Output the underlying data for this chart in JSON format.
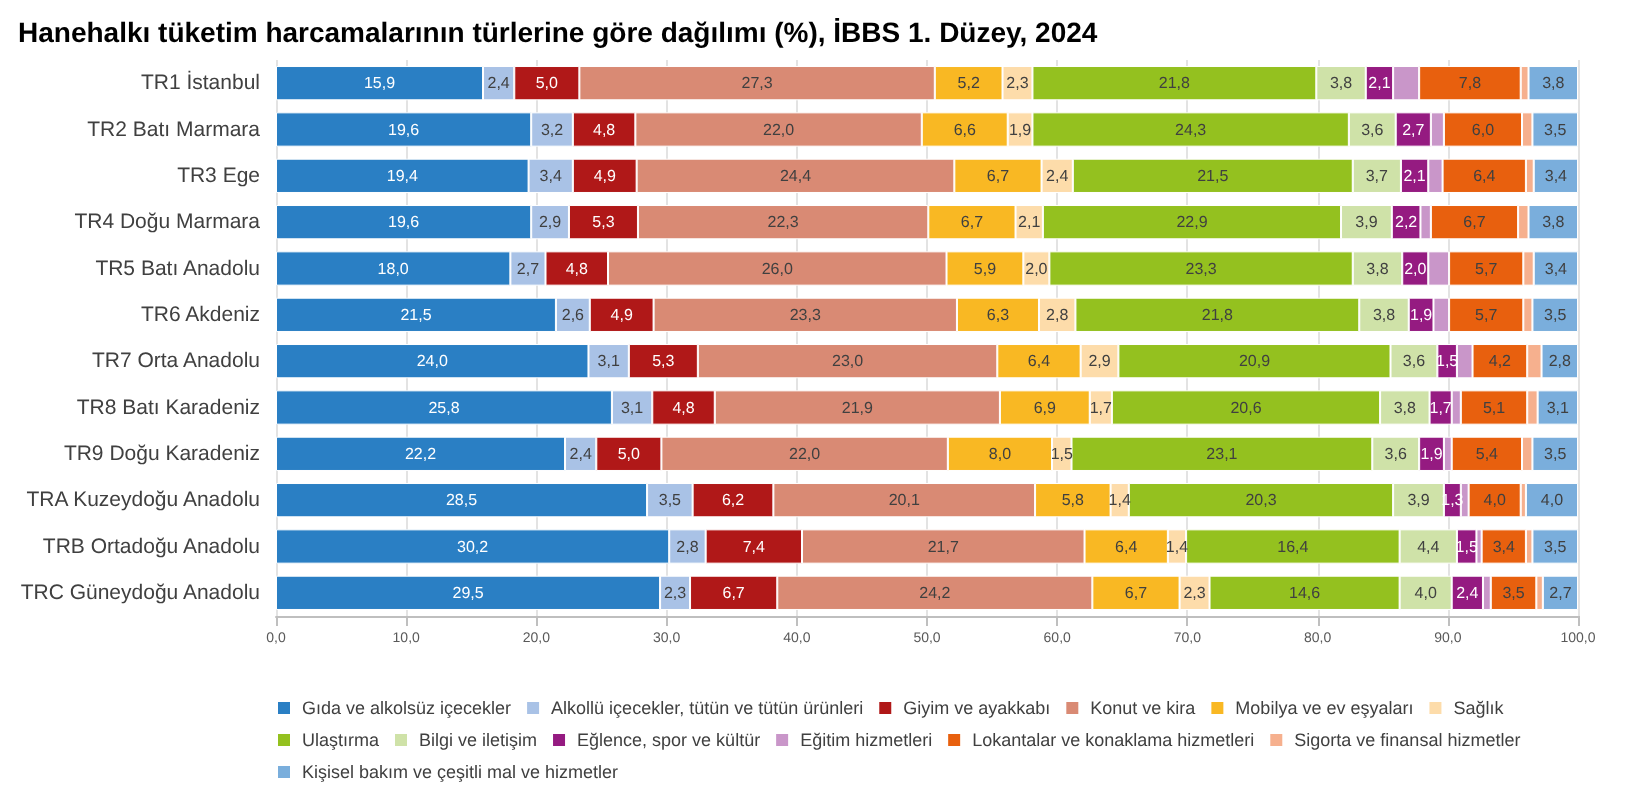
{
  "chart_data": {
    "type": "bar",
    "orientation": "horizontal",
    "stacked": true,
    "title": "Hanehalkı tüketim harcamalarının türlerine göre dağılımı (%), İBBS 1. Düzey, 2024",
    "categories": [
      "TR1 İstanbul",
      "TR2 Batı Marmara",
      "TR3 Ege",
      "TR4 Doğu Marmara",
      "TR5 Batı Anadolu",
      "TR6 Akdeniz",
      "TR7 Orta Anadolu",
      "TR8 Batı Karadeniz",
      "TR9 Doğu Karadeniz",
      "TRA Kuzeydoğu Anadolu",
      "TRB Ortadoğu Anadolu",
      "TRC Güneydoğu Anadolu"
    ],
    "xlim": [
      0,
      100
    ],
    "xticks": [
      {
        "value": 0,
        "label": "0,0"
      },
      {
        "value": 10,
        "label": "10,0"
      },
      {
        "value": 20,
        "label": "20,0"
      },
      {
        "value": 30,
        "label": "30,0"
      },
      {
        "value": 40,
        "label": "40,0"
      },
      {
        "value": 50,
        "label": "50,0"
      },
      {
        "value": 60,
        "label": "60,0"
      },
      {
        "value": 70,
        "label": "70,0"
      },
      {
        "value": 80,
        "label": "80,0"
      },
      {
        "value": 90,
        "label": "90,0"
      },
      {
        "value": 100,
        "label": "100,0"
      }
    ],
    "grid": "x",
    "legend": "bottom",
    "series": [
      {
        "name": "Gıda ve alkolsüz içecekler",
        "color": "#2a7fc4",
        "values": [
          15.9,
          19.6,
          19.4,
          19.6,
          18.0,
          21.5,
          24.0,
          25.8,
          22.2,
          28.5,
          30.2,
          29.5
        ],
        "value_labels": [
          "15,9",
          "19,6",
          "19,4",
          "19,6",
          "18,0",
          "21,5",
          "24,0",
          "25,8",
          "22,2",
          "28,5",
          "30,2",
          "29,5"
        ]
      },
      {
        "name": "Alkollü içecekler, tütün ve tütün ürünleri",
        "color": "#a9c2e6",
        "values": [
          2.4,
          3.2,
          3.4,
          2.9,
          2.7,
          2.6,
          3.1,
          3.1,
          2.4,
          3.5,
          2.8,
          2.3
        ],
        "value_labels": [
          "2,4",
          "3,2",
          "3,4",
          "2,9",
          "2,7",
          "2,6",
          "3,1",
          "3,1",
          "2,4",
          "3,5",
          "2,8",
          "2,3"
        ]
      },
      {
        "name": "Giyim ve ayakkabı",
        "color": "#b01818",
        "values": [
          5.0,
          4.8,
          4.9,
          5.3,
          4.8,
          4.9,
          5.3,
          4.8,
          5.0,
          6.2,
          7.4,
          6.7
        ],
        "value_labels": [
          "5,0",
          "4,8",
          "4,9",
          "5,3",
          "4,8",
          "4,9",
          "5,3",
          "4,8",
          "5,0",
          "6,2",
          "7,4",
          "6,7"
        ]
      },
      {
        "name": "Konut ve kira",
        "color": "#d98a74",
        "values": [
          27.3,
          22.0,
          24.4,
          22.3,
          26.0,
          23.3,
          23.0,
          21.9,
          22.0,
          20.1,
          21.7,
          24.2
        ],
        "value_labels": [
          "27,3",
          "22,0",
          "24,4",
          "22,3",
          "26,0",
          "23,3",
          "23,0",
          "21,9",
          "22,0",
          "20,1",
          "21,7",
          "24,2"
        ]
      },
      {
        "name": "Mobilya ve ev eşyaları",
        "color": "#f9b823",
        "values": [
          5.2,
          6.6,
          6.7,
          6.7,
          5.9,
          6.3,
          6.4,
          6.9,
          8.0,
          5.8,
          6.4,
          6.7
        ],
        "value_labels": [
          "5,2",
          "6,6",
          "6,7",
          "6,7",
          "5,9",
          "6,3",
          "6,4",
          "6,9",
          "8,0",
          "5,8",
          "6,4",
          "6,7"
        ]
      },
      {
        "name": "Sağlık",
        "color": "#fddcaa",
        "values": [
          2.3,
          1.9,
          2.4,
          2.1,
          2.0,
          2.8,
          2.9,
          1.7,
          1.5,
          1.4,
          1.4,
          2.3
        ],
        "value_labels": [
          "2,3",
          "1,9",
          "2,4",
          "2,1",
          "2,0",
          "2,8",
          "2,9",
          "1,7",
          "1,5",
          "1,4",
          "1,4",
          "2,3"
        ]
      },
      {
        "name": "Ulaştırma",
        "color": "#94c11f",
        "values": [
          21.8,
          24.3,
          21.5,
          22.9,
          23.3,
          21.8,
          20.9,
          20.6,
          23.1,
          20.3,
          16.4,
          14.6
        ],
        "value_labels": [
          "21,8",
          "24,3",
          "21,5",
          "22,9",
          "23,3",
          "21,8",
          "20,9",
          "20,6",
          "23,1",
          "20,3",
          "16,4",
          "14,6"
        ]
      },
      {
        "name": "Bilgi ve iletişim",
        "color": "#cfe2a8",
        "values": [
          3.8,
          3.6,
          3.7,
          3.9,
          3.8,
          3.8,
          3.6,
          3.8,
          3.6,
          3.9,
          4.4,
          4.0
        ],
        "value_labels": [
          "3,8",
          "3,6",
          "3,7",
          "3,9",
          "3,8",
          "3,8",
          "3,6",
          "3,8",
          "3,6",
          "3,9",
          "4,4",
          "4,0"
        ]
      },
      {
        "name": "Eğlence, spor ve kültür",
        "color": "#951b81",
        "values": [
          2.1,
          2.7,
          2.1,
          2.2,
          2.0,
          1.9,
          1.5,
          1.7,
          1.9,
          1.3,
          1.5,
          2.4
        ],
        "value_labels": [
          "2,1",
          "2,7",
          "2,1",
          "2,2",
          "2,0",
          "1,9",
          "1,5",
          "1,7",
          "1,9",
          "1,3",
          "1,5",
          "2,4"
        ]
      },
      {
        "name": "Eğitim hizmetleri",
        "color": "#c996c9",
        "values": [
          2.0,
          1.0,
          1.1,
          0.8,
          1.6,
          1.2,
          1.2,
          0.7,
          0.6,
          0.6,
          0.4,
          0.6
        ]
      },
      {
        "name": "Lokantalar ve konaklama hizmetleri",
        "color": "#e8600e",
        "values": [
          7.8,
          6.0,
          6.4,
          6.7,
          5.7,
          5.7,
          4.2,
          5.1,
          5.4,
          4.0,
          3.4,
          3.5
        ],
        "value_labels": [
          "7,8",
          "6,0",
          "6,4",
          "6,7",
          "5,7",
          "5,7",
          "4,2",
          "5,1",
          "5,4",
          "4,0",
          "3,4",
          "3,5"
        ]
      },
      {
        "name": "Sigorta ve finansal hizmetler",
        "color": "#f6b08e",
        "values": [
          0.6,
          0.8,
          0.6,
          0.8,
          0.8,
          0.7,
          1.1,
          0.8,
          0.8,
          0.4,
          0.5,
          0.5
        ]
      },
      {
        "name": "Kişisel bakım ve çeşitli mal ve hizmetler",
        "color": "#7aaedc",
        "values": [
          3.8,
          3.5,
          3.4,
          3.8,
          3.4,
          3.5,
          2.8,
          3.1,
          3.5,
          4.0,
          3.5,
          2.7
        ],
        "value_labels": [
          "3,8",
          "3,5",
          "3,4",
          "3,8",
          "3,4",
          "3,5",
          "2,8",
          "3,1",
          "3,5",
          "4,0",
          "3,5",
          "2,7"
        ]
      }
    ]
  }
}
